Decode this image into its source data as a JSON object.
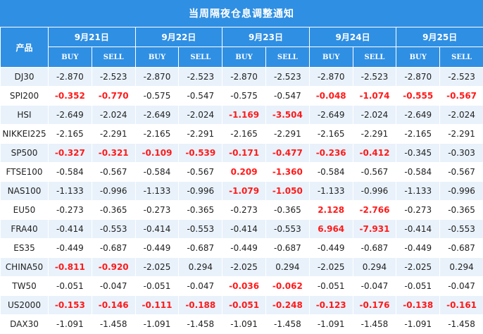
{
  "title": "当周隔夜仓息调整通知",
  "product_header": "产品",
  "buy_label": "BUY",
  "sell_label": "SELL",
  "dates": [
    "9月21日",
    "9月22日",
    "9月23日",
    "9月24日",
    "9月25日"
  ],
  "highlight_color": "#ff1a1a",
  "header_color": "#2f8fe3",
  "rows": [
    {
      "product": "DJ30",
      "values": [
        [
          "-2.870",
          "-2.523"
        ],
        [
          "-2.870",
          "-2.523"
        ],
        [
          "-2.870",
          "-2.523"
        ],
        [
          "-2.870",
          "-2.523"
        ],
        [
          "-2.870",
          "-2.523"
        ]
      ],
      "red": [
        false,
        false,
        false,
        false,
        false
      ]
    },
    {
      "product": "SPI200",
      "values": [
        [
          "-0.352",
          "-0.770"
        ],
        [
          "-0.575",
          "-0.547"
        ],
        [
          "-0.575",
          "-0.547"
        ],
        [
          "-0.048",
          "-1.074"
        ],
        [
          "-0.555",
          "-0.567"
        ]
      ],
      "red": [
        true,
        false,
        false,
        true,
        true
      ]
    },
    {
      "product": "HSI",
      "values": [
        [
          "-2.649",
          "-2.024"
        ],
        [
          "-2.649",
          "-2.024"
        ],
        [
          "-1.169",
          "-3.504"
        ],
        [
          "-2.649",
          "-2.024"
        ],
        [
          "-2.649",
          "-2.024"
        ]
      ],
      "red": [
        false,
        false,
        true,
        false,
        false
      ]
    },
    {
      "product": "NIKKEI225",
      "values": [
        [
          "-2.165",
          "-2.291"
        ],
        [
          "-2.165",
          "-2.291"
        ],
        [
          "-2.165",
          "-2.291"
        ],
        [
          "-2.165",
          "-2.291"
        ],
        [
          "-2.165",
          "-2.291"
        ]
      ],
      "red": [
        false,
        false,
        false,
        false,
        false
      ]
    },
    {
      "product": "SP500",
      "values": [
        [
          "-0.327",
          "-0.321"
        ],
        [
          "-0.109",
          "-0.539"
        ],
        [
          "-0.171",
          "-0.477"
        ],
        [
          "-0.236",
          "-0.412"
        ],
        [
          "-0.345",
          "-0.303"
        ]
      ],
      "red": [
        true,
        true,
        true,
        true,
        false
      ]
    },
    {
      "product": "FTSE100",
      "values": [
        [
          "-0.584",
          "-0.567"
        ],
        [
          "-0.584",
          "-0.567"
        ],
        [
          "0.209",
          "-1.360"
        ],
        [
          "-0.584",
          "-0.567"
        ],
        [
          "-0.584",
          "-0.567"
        ]
      ],
      "red": [
        false,
        false,
        true,
        false,
        false
      ]
    },
    {
      "product": "NAS100",
      "values": [
        [
          "-1.133",
          "-0.996"
        ],
        [
          "-1.133",
          "-0.996"
        ],
        [
          "-1.079",
          "-1.050"
        ],
        [
          "-1.133",
          "-0.996"
        ],
        [
          "-1.133",
          "-0.996"
        ]
      ],
      "red": [
        false,
        false,
        true,
        false,
        false
      ]
    },
    {
      "product": "EU50",
      "values": [
        [
          "-0.273",
          "-0.365"
        ],
        [
          "-0.273",
          "-0.365"
        ],
        [
          "-0.273",
          "-0.365"
        ],
        [
          "2.128",
          "-2.766"
        ],
        [
          "-0.273",
          "-0.365"
        ]
      ],
      "red": [
        false,
        false,
        false,
        true,
        false
      ]
    },
    {
      "product": "FRA40",
      "values": [
        [
          "-0.414",
          "-0.553"
        ],
        [
          "-0.414",
          "-0.553"
        ],
        [
          "-0.414",
          "-0.553"
        ],
        [
          "6.964",
          "-7.931"
        ],
        [
          "-0.414",
          "-0.553"
        ]
      ],
      "red": [
        false,
        false,
        false,
        true,
        false
      ]
    },
    {
      "product": "ES35",
      "values": [
        [
          "-0.449",
          "-0.687"
        ],
        [
          "-0.449",
          "-0.687"
        ],
        [
          "-0.449",
          "-0.687"
        ],
        [
          "-0.449",
          "-0.687"
        ],
        [
          "-0.449",
          "-0.687"
        ]
      ],
      "red": [
        false,
        false,
        false,
        false,
        false
      ]
    },
    {
      "product": "CHINA50",
      "values": [
        [
          "-0.811",
          "-0.920"
        ],
        [
          "-2.025",
          "0.294"
        ],
        [
          "-2.025",
          "0.294"
        ],
        [
          "-2.025",
          "0.294"
        ],
        [
          "-2.025",
          "0.294"
        ]
      ],
      "red": [
        true,
        false,
        false,
        false,
        false
      ]
    },
    {
      "product": "TW50",
      "values": [
        [
          "-0.051",
          "-0.047"
        ],
        [
          "-0.051",
          "-0.047"
        ],
        [
          "-0.036",
          "-0.062"
        ],
        [
          "-0.051",
          "-0.047"
        ],
        [
          "-0.051",
          "-0.047"
        ]
      ],
      "red": [
        false,
        false,
        true,
        false,
        false
      ]
    },
    {
      "product": "US2000",
      "values": [
        [
          "-0.153",
          "-0.146"
        ],
        [
          "-0.111",
          "-0.188"
        ],
        [
          "-0.051",
          "-0.248"
        ],
        [
          "-0.123",
          "-0.176"
        ],
        [
          "-0.138",
          "-0.161"
        ]
      ],
      "red": [
        true,
        true,
        true,
        true,
        true
      ]
    },
    {
      "product": "DAX30",
      "values": [
        [
          "-1.091",
          "-1.458"
        ],
        [
          "-1.091",
          "-1.458"
        ],
        [
          "-1.091",
          "-1.458"
        ],
        [
          "-1.091",
          "-1.458"
        ],
        [
          "-1.091",
          "-1.458"
        ]
      ],
      "red": [
        false,
        false,
        false,
        false,
        false
      ]
    }
  ]
}
